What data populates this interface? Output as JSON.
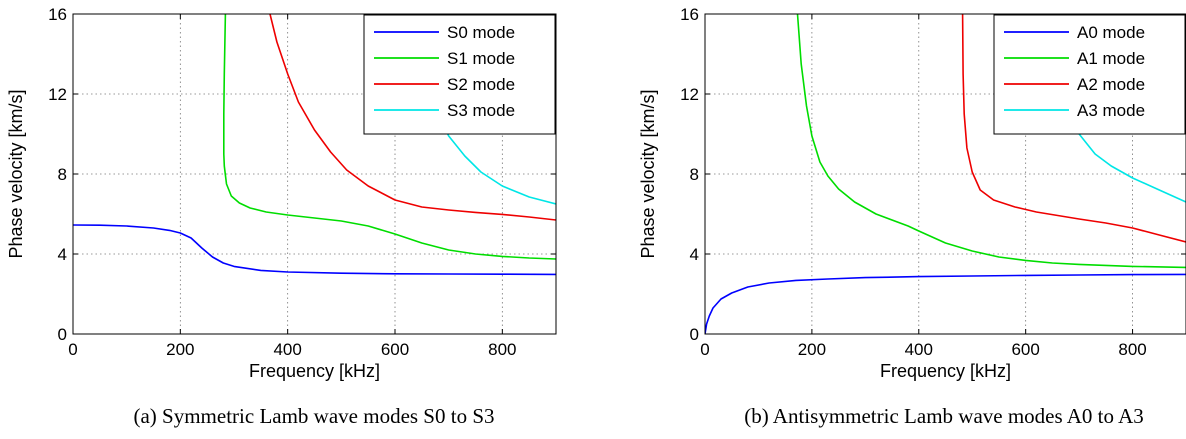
{
  "chart_data": [
    {
      "type": "line",
      "caption": "(a) Symmetric Lamb wave modes S0 to S3",
      "xlabel": "Frequency [kHz]",
      "ylabel": "Phase velocity [km/s]",
      "xlim": [
        0,
        900
      ],
      "ylim": [
        0,
        16
      ],
      "xticks": [
        0,
        200,
        400,
        600,
        800
      ],
      "yticks": [
        0,
        4,
        8,
        12,
        16
      ],
      "grid": true,
      "legend_position": "top-right",
      "series": [
        {
          "name": "S0 mode",
          "color": "#0000ff",
          "points": [
            [
              0,
              5.45
            ],
            [
              50,
              5.44
            ],
            [
              100,
              5.4
            ],
            [
              150,
              5.3
            ],
            [
              180,
              5.18
            ],
            [
              200,
              5.05
            ],
            [
              220,
              4.8
            ],
            [
              240,
              4.3
            ],
            [
              260,
              3.85
            ],
            [
              280,
              3.55
            ],
            [
              300,
              3.38
            ],
            [
              350,
              3.18
            ],
            [
              400,
              3.1
            ],
            [
              500,
              3.04
            ],
            [
              600,
              3.01
            ],
            [
              700,
              3.0
            ],
            [
              800,
              2.99
            ],
            [
              900,
              2.98
            ]
          ]
        },
        {
          "name": "S1 mode",
          "color": "#00dd00",
          "points": [
            [
              284,
              16
            ],
            [
              282,
              13
            ],
            [
              281,
              11
            ],
            [
              281,
              9
            ],
            [
              282,
              8.4
            ],
            [
              286,
              7.5
            ],
            [
              295,
              6.9
            ],
            [
              310,
              6.55
            ],
            [
              330,
              6.3
            ],
            [
              360,
              6.1
            ],
            [
              400,
              5.95
            ],
            [
              450,
              5.8
            ],
            [
              500,
              5.65
            ],
            [
              550,
              5.4
            ],
            [
              600,
              5.0
            ],
            [
              650,
              4.55
            ],
            [
              700,
              4.2
            ],
            [
              750,
              4.0
            ],
            [
              800,
              3.88
            ],
            [
              850,
              3.8
            ],
            [
              900,
              3.75
            ]
          ]
        },
        {
          "name": "S2 mode",
          "color": "#ee0000",
          "points": [
            [
              367,
              16
            ],
            [
              380,
              14.6
            ],
            [
              400,
              13.0
            ],
            [
              420,
              11.6
            ],
            [
              450,
              10.2
            ],
            [
              480,
              9.1
            ],
            [
              510,
              8.2
            ],
            [
              550,
              7.4
            ],
            [
              600,
              6.7
            ],
            [
              650,
              6.35
            ],
            [
              700,
              6.2
            ],
            [
              750,
              6.08
            ],
            [
              800,
              5.98
            ],
            [
              850,
              5.85
            ],
            [
              900,
              5.7
            ]
          ]
        },
        {
          "name": "S3 mode",
          "color": "#00e6e6",
          "points": [
            [
              653,
              16
            ],
            [
              655,
              13.5
            ],
            [
              665,
              12.0
            ],
            [
              680,
              11.0
            ],
            [
              700,
              9.9
            ],
            [
              730,
              8.9
            ],
            [
              760,
              8.1
            ],
            [
              800,
              7.4
            ],
            [
              850,
              6.85
            ],
            [
              900,
              6.5
            ]
          ]
        }
      ]
    },
    {
      "type": "line",
      "caption": "(b) Antisymmetric Lamb wave modes A0 to A3",
      "xlabel": "Frequency [kHz]",
      "ylabel": "Phase velocity [km/s]",
      "xlim": [
        0,
        900
      ],
      "ylim": [
        0,
        16
      ],
      "xticks": [
        0,
        200,
        400,
        600,
        800
      ],
      "yticks": [
        0,
        4,
        8,
        12,
        16
      ],
      "grid": true,
      "legend_position": "top-right",
      "series": [
        {
          "name": "A0 mode",
          "color": "#0000ff",
          "points": [
            [
              0,
              0
            ],
            [
              3,
              0.5
            ],
            [
              8,
              0.9
            ],
            [
              15,
              1.3
            ],
            [
              30,
              1.75
            ],
            [
              50,
              2.05
            ],
            [
              80,
              2.35
            ],
            [
              120,
              2.55
            ],
            [
              170,
              2.68
            ],
            [
              230,
              2.75
            ],
            [
              300,
              2.82
            ],
            [
              400,
              2.87
            ],
            [
              500,
              2.9
            ],
            [
              600,
              2.93
            ],
            [
              700,
              2.95
            ],
            [
              800,
              2.97
            ],
            [
              900,
              2.98
            ]
          ]
        },
        {
          "name": "A1 mode",
          "color": "#00dd00",
          "points": [
            [
              173,
              16
            ],
            [
              180,
              13.5
            ],
            [
              190,
              11.4
            ],
            [
              200,
              9.9
            ],
            [
              215,
              8.6
            ],
            [
              230,
              7.9
            ],
            [
              250,
              7.25
            ],
            [
              280,
              6.6
            ],
            [
              320,
              6.0
            ],
            [
              380,
              5.4
            ],
            [
              400,
              5.15
            ],
            [
              450,
              4.55
            ],
            [
              500,
              4.15
            ],
            [
              550,
              3.85
            ],
            [
              600,
              3.68
            ],
            [
              650,
              3.55
            ],
            [
              700,
              3.48
            ],
            [
              800,
              3.38
            ],
            [
              900,
              3.33
            ]
          ]
        },
        {
          "name": "A2 mode",
          "color": "#ee0000",
          "points": [
            [
              482,
              16
            ],
            [
              483,
              13
            ],
            [
              485,
              11
            ],
            [
              490,
              9.3
            ],
            [
              500,
              8.1
            ],
            [
              515,
              7.2
            ],
            [
              540,
              6.7
            ],
            [
              580,
              6.35
            ],
            [
              620,
              6.1
            ],
            [
              700,
              5.75
            ],
            [
              750,
              5.55
            ],
            [
              800,
              5.3
            ],
            [
              850,
              4.95
            ],
            [
              900,
              4.6
            ]
          ]
        },
        {
          "name": "A3 mode",
          "color": "#00e6e6",
          "points": [
            [
              651,
              16
            ],
            [
              653,
              14.5
            ],
            [
              657,
              13.3
            ],
            [
              665,
              12.0
            ],
            [
              680,
              10.9
            ],
            [
              700,
              10.0
            ],
            [
              730,
              9.0
            ],
            [
              760,
              8.4
            ],
            [
              800,
              7.8
            ],
            [
              850,
              7.2
            ],
            [
              900,
              6.6
            ]
          ]
        }
      ]
    }
  ]
}
